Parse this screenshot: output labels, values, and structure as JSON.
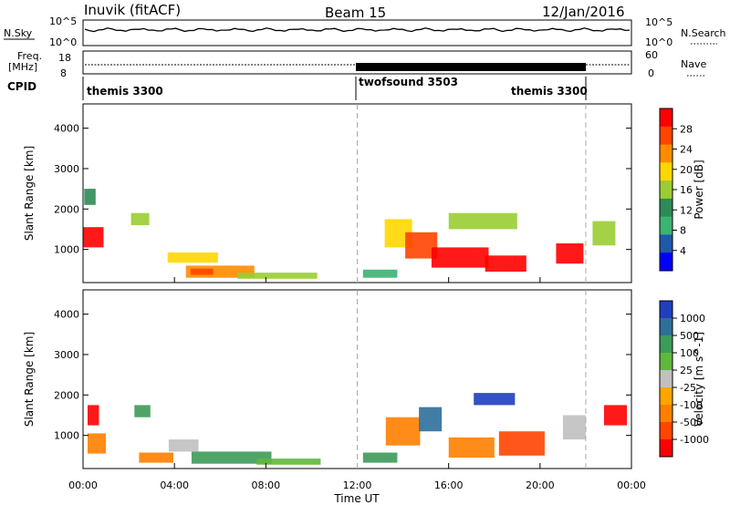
{
  "header": {
    "station": "Inuvik (fitACF)",
    "beam": "Beam 15",
    "date": "12/Jan/2016"
  },
  "sky_panel": {
    "left_label": "N.Sky",
    "right_label": "N.Search",
    "left_ticks": [
      "10^5",
      "10^0"
    ],
    "right_ticks": [
      "10^5",
      "10^0"
    ]
  },
  "freq_panel": {
    "label_line1": "Freq.",
    "label_line2": "[MHz]",
    "left_ticks": [
      "18",
      "8"
    ],
    "right_label": "Nave",
    "right_ticks": [
      "60",
      "0"
    ]
  },
  "cpid": {
    "label": "CPID",
    "segments": [
      {
        "name": "themis 3300",
        "start_hour": 0,
        "end_hour": 12
      },
      {
        "name": "twofsound 3503",
        "start_hour": 12,
        "end_hour": 22
      },
      {
        "name": "themis 3300",
        "start_hour": 22,
        "end_hour": 24
      }
    ]
  },
  "power_colorbar": {
    "label": "Power [dB]",
    "ticks": [
      "28",
      "24",
      "20",
      "16",
      "12",
      "8",
      "4"
    ],
    "colors": [
      "#ff0000",
      "#ff4400",
      "#ff8c00",
      "#ffd700",
      "#9acd32",
      "#2e8b57",
      "#3cb371",
      "#1e5aa8",
      "#0000ff"
    ]
  },
  "velocity_colorbar": {
    "label": "Velocity [m s^-1]",
    "ticks": [
      "1000",
      "500",
      "100",
      "25",
      "-25",
      "-100",
      "-500",
      "-1000"
    ],
    "colors": [
      "#1f3fbf",
      "#2e6f9a",
      "#3d9a5a",
      "#5fb83c",
      "#c0c0c0",
      "#ffa500",
      "#ff7f00",
      "#ff4500",
      "#ff0000"
    ]
  },
  "chart_data": {
    "type": "heatmap",
    "ylabel": "Slant Range [km]",
    "xlabel": "Time UT",
    "x_ticks": [
      "00:00",
      "04:00",
      "08:00",
      "12:00",
      "16:00",
      "20:00",
      "00:00"
    ],
    "y_ticks": [
      "1000",
      "2000",
      "3000",
      "4000"
    ],
    "xlim_hours": [
      0,
      24
    ],
    "ylim_km": [
      180,
      4600
    ],
    "dashed_lines_hours": [
      12,
      22
    ],
    "panels": [
      {
        "name": "Power",
        "patches": [
          {
            "t": 0.45,
            "r": 1300,
            "dt": 0.9,
            "dr": 500,
            "c": 0
          },
          {
            "t": 0.3,
            "r": 2300,
            "dt": 0.5,
            "dr": 400,
            "c": 5
          },
          {
            "t": 2.5,
            "r": 1750,
            "dt": 0.8,
            "dr": 300,
            "c": 4
          },
          {
            "t": 4.8,
            "r": 800,
            "dt": 2.2,
            "dr": 250,
            "c": 3
          },
          {
            "t": 6.0,
            "r": 450,
            "dt": 3.0,
            "dr": 300,
            "c": 2
          },
          {
            "t": 5.2,
            "r": 450,
            "dt": 1.0,
            "dr": 150,
            "c": 1
          },
          {
            "t": 8.5,
            "r": 350,
            "dt": 3.5,
            "dr": 150,
            "c": 4
          },
          {
            "t": 13.8,
            "r": 1400,
            "dt": 1.2,
            "dr": 700,
            "c": 3
          },
          {
            "t": 14.8,
            "r": 1100,
            "dt": 1.4,
            "dr": 650,
            "c": 1
          },
          {
            "t": 16.5,
            "r": 800,
            "dt": 2.5,
            "dr": 500,
            "c": 0
          },
          {
            "t": 18.5,
            "r": 650,
            "dt": 1.8,
            "dr": 400,
            "c": 0
          },
          {
            "t": 21.3,
            "r": 900,
            "dt": 1.2,
            "dr": 500,
            "c": 0
          },
          {
            "t": 17.5,
            "r": 1700,
            "dt": 3.0,
            "dr": 400,
            "c": 4
          },
          {
            "t": 22.8,
            "r": 1400,
            "dt": 1.0,
            "dr": 600,
            "c": 4
          },
          {
            "t": 13.0,
            "r": 400,
            "dt": 1.5,
            "dr": 200,
            "c": 6
          }
        ]
      },
      {
        "name": "Velocity",
        "patches": [
          {
            "t": 0.45,
            "r": 1500,
            "dt": 0.5,
            "dr": 500,
            "c": 8
          },
          {
            "t": 0.6,
            "r": 800,
            "dt": 0.8,
            "dr": 500,
            "c": 6
          },
          {
            "t": 2.6,
            "r": 1600,
            "dt": 0.7,
            "dr": 300,
            "c": 2
          },
          {
            "t": 4.4,
            "r": 750,
            "dt": 1.3,
            "dr": 300,
            "c": 4
          },
          {
            "t": 6.5,
            "r": 450,
            "dt": 3.5,
            "dr": 300,
            "c": 2
          },
          {
            "t": 3.2,
            "r": 450,
            "dt": 1.5,
            "dr": 250,
            "c": 6
          },
          {
            "t": 9.0,
            "r": 350,
            "dt": 2.8,
            "dr": 150,
            "c": 3
          },
          {
            "t": 14.0,
            "r": 1100,
            "dt": 1.5,
            "dr": 700,
            "c": 6
          },
          {
            "t": 15.2,
            "r": 1400,
            "dt": 1.0,
            "dr": 600,
            "c": 1
          },
          {
            "t": 17.0,
            "r": 700,
            "dt": 2.0,
            "dr": 500,
            "c": 6
          },
          {
            "t": 19.2,
            "r": 800,
            "dt": 2.0,
            "dr": 600,
            "c": 7
          },
          {
            "t": 21.5,
            "r": 1200,
            "dt": 1.0,
            "dr": 600,
            "c": 4
          },
          {
            "t": 23.3,
            "r": 1500,
            "dt": 1.0,
            "dr": 500,
            "c": 8
          },
          {
            "t": 18.0,
            "r": 1900,
            "dt": 1.8,
            "dr": 300,
            "c": 0
          },
          {
            "t": 13.0,
            "r": 450,
            "dt": 1.5,
            "dr": 250,
            "c": 2
          }
        ]
      }
    ]
  }
}
